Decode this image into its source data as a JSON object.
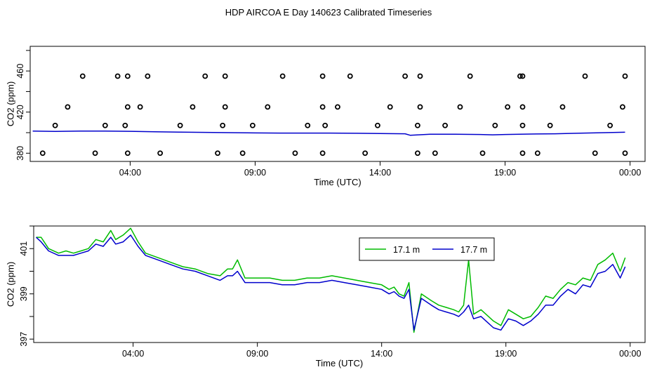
{
  "title": "HDP AIRCOA E  Day 140623  Calibrated Timeseries",
  "colors": {
    "top_series": "#0000cc",
    "flag_points": "#000000",
    "series_17_1": "#00bb00",
    "series_17_7": "#0000cc"
  },
  "chart_data": [
    {
      "type": "scatter",
      "panel": "top",
      "xlabel": "Time (UTC)",
      "ylabel": "CO2 (ppm)",
      "x_unit": "hours UTC (0 = 00:00 day 140623)",
      "xlim": [
        0.0,
        24.6
      ],
      "ylim": [
        372,
        484
      ],
      "x_ticks": [
        {
          "value": 4,
          "label": "04:00"
        },
        {
          "value": 9,
          "label": "09:00"
        },
        {
          "value": 14,
          "label": "14:00"
        },
        {
          "value": 19,
          "label": "19:00"
        },
        {
          "value": 24,
          "label": "00:00"
        }
      ],
      "y_ticks": [
        380,
        420,
        460
      ],
      "series": [
        {
          "mark": "line",
          "x": [
            0.1,
            1.0,
            2.0,
            3.0,
            4.0,
            5.0,
            6.0,
            7.0,
            8.0,
            9.0,
            10.0,
            11.0,
            12.0,
            13.0,
            14.0,
            15.0,
            15.2,
            16.0,
            17.0,
            18.0,
            18.5,
            19.0,
            20.0,
            21.0,
            22.0,
            23.0,
            23.8
          ],
          "values": [
            401.5,
            401.2,
            401.5,
            401.6,
            401.3,
            400.8,
            400.5,
            400.3,
            400.0,
            399.7,
            399.6,
            399.6,
            399.6,
            399.4,
            399.2,
            398.9,
            397.5,
            398.5,
            398.4,
            398.2,
            397.9,
            398.2,
            398.6,
            398.9,
            399.5,
            400.0,
            400.4
          ]
        },
        {
          "mark": "points",
          "x": [
            0.5,
            1.0,
            1.5,
            2.1,
            2.6,
            3.0,
            3.5,
            3.8,
            3.9,
            3.9,
            3.9,
            4.4,
            4.7,
            5.2,
            6.0,
            6.5,
            7.0,
            7.5,
            7.7,
            7.8,
            7.8,
            8.5,
            8.9,
            9.5,
            10.1,
            10.6,
            11.1,
            11.7,
            11.7,
            11.7,
            11.8,
            12.3,
            12.8,
            13.4,
            13.9,
            14.4,
            15.0,
            15.5,
            15.5,
            15.6,
            15.6,
            16.2,
            16.6,
            17.2,
            17.6,
            18.1,
            18.6,
            19.1,
            19.6,
            19.7,
            19.7,
            19.7,
            19.7,
            20.3,
            20.8,
            21.3,
            22.2,
            22.6,
            23.2,
            23.7,
            23.8,
            23.8
          ],
          "values": [
            380,
            407,
            425,
            455,
            380,
            407,
            455,
            407,
            425,
            455,
            380,
            425,
            455,
            380,
            407,
            425,
            455,
            380,
            407,
            425,
            455,
            380,
            407,
            425,
            455,
            380,
            407,
            425,
            455,
            380,
            407,
            425,
            455,
            380,
            407,
            425,
            455,
            380,
            407,
            425,
            455,
            380,
            407,
            425,
            455,
            380,
            407,
            425,
            455,
            380,
            407,
            425,
            455,
            380,
            407,
            425,
            455,
            380,
            407,
            425,
            455,
            380
          ]
        }
      ]
    },
    {
      "type": "line",
      "panel": "bottom",
      "xlabel": "Time (UTC)",
      "ylabel": "CO2 (ppm)",
      "x_unit": "hours UTC (0 = 00:00 day 140623)",
      "xlim": [
        0.0,
        24.6
      ],
      "ylim": [
        396.85,
        402.0
      ],
      "x_ticks": [
        {
          "value": 4,
          "label": "04:00"
        },
        {
          "value": 9,
          "label": "09:00"
        },
        {
          "value": 14,
          "label": "14:00"
        },
        {
          "value": 19,
          "label": "19:00"
        },
        {
          "value": 24,
          "label": "00:00"
        }
      ],
      "y_ticks": [
        397,
        399,
        401
      ],
      "legend_position": "top-right",
      "series": [
        {
          "name": "17.1 m",
          "x": [
            0.1,
            0.3,
            0.6,
            1.0,
            1.3,
            1.6,
            1.9,
            2.2,
            2.5,
            2.8,
            3.1,
            3.3,
            3.6,
            3.9,
            4.2,
            4.5,
            5.0,
            5.5,
            6.0,
            6.5,
            7.0,
            7.5,
            7.8,
            8.0,
            8.2,
            8.5,
            9.0,
            9.5,
            10.0,
            10.5,
            11.0,
            11.5,
            12.0,
            12.5,
            13.0,
            13.5,
            14.0,
            14.3,
            14.5,
            14.7,
            14.9,
            15.1,
            15.3,
            15.6,
            16.0,
            16.3,
            16.6,
            16.9,
            17.1,
            17.3,
            17.5,
            17.7,
            18.0,
            18.3,
            18.5,
            18.8,
            19.1,
            19.4,
            19.7,
            20.0,
            20.3,
            20.6,
            20.9,
            21.2,
            21.5,
            21.8,
            22.1,
            22.4,
            22.7,
            23.0,
            23.3,
            23.6,
            23.8
          ],
          "values": [
            401.5,
            401.5,
            401.0,
            400.8,
            400.9,
            400.8,
            400.9,
            401.0,
            401.4,
            401.3,
            401.8,
            401.4,
            401.6,
            401.9,
            401.3,
            400.8,
            400.6,
            400.4,
            400.2,
            400.1,
            399.9,
            399.8,
            400.1,
            400.1,
            400.5,
            399.7,
            399.7,
            399.7,
            399.6,
            399.6,
            399.7,
            399.7,
            399.8,
            399.7,
            399.6,
            399.5,
            399.4,
            399.2,
            399.3,
            399.0,
            398.9,
            399.5,
            397.3,
            399.0,
            398.7,
            398.5,
            398.4,
            398.3,
            398.2,
            398.5,
            400.5,
            398.1,
            398.3,
            398.0,
            397.8,
            397.6,
            398.3,
            398.1,
            397.9,
            398.0,
            398.4,
            398.9,
            398.8,
            399.2,
            399.5,
            399.4,
            399.7,
            399.6,
            400.3,
            400.5,
            400.8,
            400.0,
            400.6
          ]
        },
        {
          "name": "17.7 m",
          "x": [
            0.1,
            0.3,
            0.6,
            1.0,
            1.3,
            1.6,
            1.9,
            2.2,
            2.5,
            2.8,
            3.1,
            3.3,
            3.6,
            3.9,
            4.2,
            4.5,
            5.0,
            5.5,
            6.0,
            6.5,
            7.0,
            7.5,
            7.8,
            8.0,
            8.2,
            8.5,
            9.0,
            9.5,
            10.0,
            10.5,
            11.0,
            11.5,
            12.0,
            12.5,
            13.0,
            13.5,
            14.0,
            14.3,
            14.5,
            14.7,
            14.9,
            15.1,
            15.3,
            15.6,
            16.0,
            16.3,
            16.6,
            16.9,
            17.1,
            17.3,
            17.5,
            17.7,
            18.0,
            18.3,
            18.5,
            18.8,
            19.1,
            19.4,
            19.7,
            20.0,
            20.3,
            20.6,
            20.9,
            21.2,
            21.5,
            21.8,
            22.1,
            22.4,
            22.7,
            23.0,
            23.3,
            23.6,
            23.8
          ],
          "values": [
            401.5,
            401.3,
            400.9,
            400.7,
            400.7,
            400.7,
            400.8,
            400.9,
            401.2,
            401.1,
            401.5,
            401.2,
            401.3,
            401.6,
            401.1,
            400.7,
            400.5,
            400.3,
            400.1,
            400.0,
            399.8,
            399.6,
            399.8,
            399.8,
            400.0,
            399.5,
            399.5,
            399.5,
            399.4,
            399.4,
            399.5,
            399.5,
            399.6,
            399.5,
            399.4,
            399.3,
            399.2,
            399.0,
            399.1,
            398.9,
            398.8,
            399.2,
            397.4,
            398.8,
            398.5,
            398.3,
            398.2,
            398.1,
            398.0,
            398.2,
            398.5,
            397.9,
            398.0,
            397.7,
            397.5,
            397.4,
            397.9,
            397.8,
            397.6,
            397.8,
            398.1,
            398.5,
            398.5,
            398.9,
            399.2,
            399.0,
            399.4,
            399.3,
            399.9,
            400.0,
            400.3,
            399.7,
            400.2
          ]
        }
      ]
    }
  ]
}
